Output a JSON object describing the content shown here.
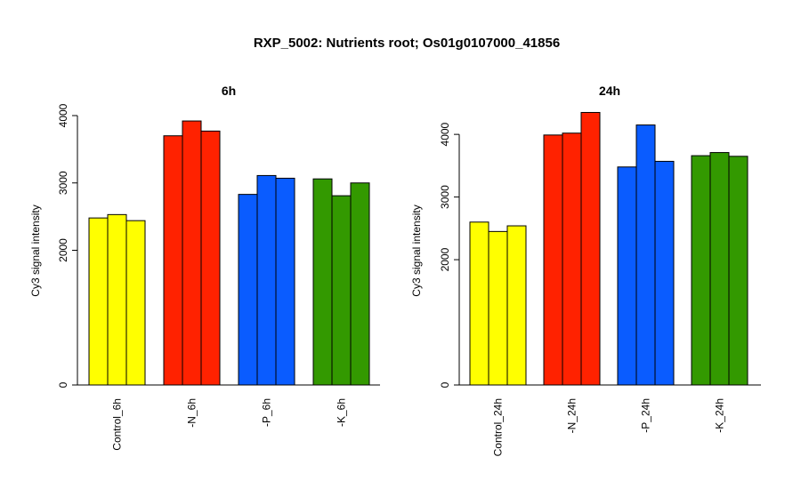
{
  "title": "RXP_5002: Nutrients root; Os01g0107000_41856",
  "colors": {
    "yellow": "#ffff00",
    "red": "#ff2200",
    "blue": "#0a5cff",
    "green": "#339900"
  },
  "chart_data": [
    {
      "type": "bar",
      "title": "6h",
      "ylabel": "Cy3 signal intensity",
      "xlabel": "",
      "ylim": [
        0,
        4000
      ],
      "yticks": [
        0,
        2000,
        3000,
        4000
      ],
      "categories": [
        "Control_6h",
        "-N_6h",
        "-P_6h",
        "-K_6h"
      ],
      "group_colors": [
        "#ffff00",
        "#ff2200",
        "#0a5cff",
        "#339900"
      ],
      "values": [
        [
          2480,
          2530,
          2440
        ],
        [
          3700,
          3920,
          3770
        ],
        [
          2830,
          3110,
          3070
        ],
        [
          3060,
          2810,
          3000
        ]
      ],
      "grid": false,
      "legend": "none"
    },
    {
      "type": "bar",
      "title": "24h",
      "ylabel": "Cy3 signal intensity",
      "xlabel": "",
      "ylim": [
        0,
        4300
      ],
      "yticks": [
        0,
        2000,
        3000,
        4000
      ],
      "categories": [
        "Control_24h",
        "-N_24h",
        "-P_24h",
        "-K_24h"
      ],
      "group_colors": [
        "#ffff00",
        "#ff2200",
        "#0a5cff",
        "#339900"
      ],
      "values": [
        [
          2600,
          2450,
          2540
        ],
        [
          3990,
          4020,
          4350
        ],
        [
          3480,
          4150,
          3570
        ],
        [
          3660,
          3710,
          3650
        ]
      ],
      "grid": false,
      "legend": "none"
    }
  ]
}
